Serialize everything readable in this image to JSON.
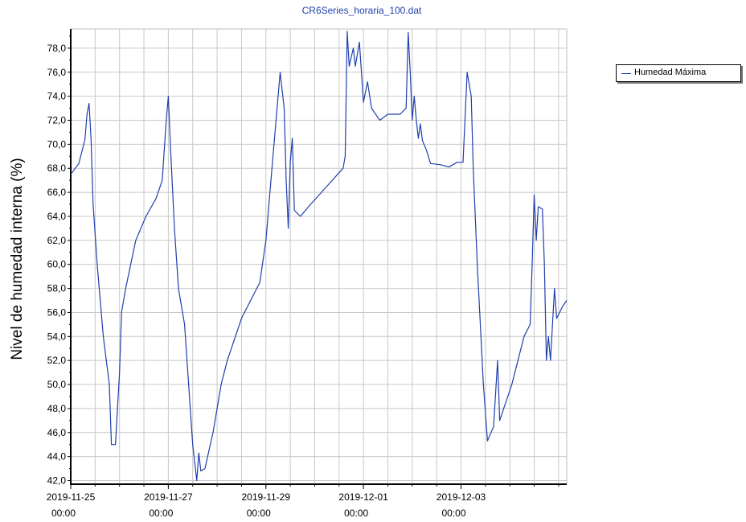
{
  "chart_data": {
    "type": "line",
    "title": "CR6Series_horaria_100.dat",
    "ylabel": "Nivel de humedad interna (%)",
    "xlabel": "",
    "ylim": [
      41.7,
      79.6
    ],
    "xlim": [
      "2019-11-25 00:00",
      "2019-12-05 04:00"
    ],
    "grid": true,
    "legend_position": "right",
    "y_ticks": [
      "42,0",
      "44,0",
      "46,0",
      "48,0",
      "50,0",
      "52,0",
      "54,0",
      "56,0",
      "58,0",
      "60,0",
      "62,0",
      "64,0",
      "66,0",
      "68,0",
      "70,0",
      "72,0",
      "74,0",
      "76,0",
      "78,0"
    ],
    "y_tick_values": [
      42,
      44,
      46,
      48,
      50,
      52,
      54,
      56,
      58,
      60,
      62,
      64,
      66,
      68,
      70,
      72,
      74,
      76,
      78
    ],
    "x_ticks": [
      {
        "date": "2019-11-25",
        "time": "00:00"
      },
      {
        "date": "2019-11-27",
        "time": "00:00"
      },
      {
        "date": "2019-11-29",
        "time": "00:00"
      },
      {
        "date": "2019-12-01",
        "time": "00:00"
      },
      {
        "date": "2019-12-03",
        "time": "00:00"
      }
    ],
    "series_color": "#1f3fae",
    "series": [
      {
        "name": "Humedad Máxima",
        "points": [
          [
            "2019-11-25 00:00",
            67.5
          ],
          [
            "2019-11-25 04:00",
            68.4
          ],
          [
            "2019-11-25 07:00",
            70.4
          ],
          [
            "2019-11-25 08:00",
            72.5
          ],
          [
            "2019-11-25 09:00",
            73.4
          ],
          [
            "2019-11-25 10:00",
            70.4
          ],
          [
            "2019-11-25 11:00",
            65.0
          ],
          [
            "2019-11-25 13:00",
            60.0
          ],
          [
            "2019-11-25 16:00",
            54.0
          ],
          [
            "2019-11-25 19:00",
            50.0
          ],
          [
            "2019-11-25 20:00",
            45.0
          ],
          [
            "2019-11-25 22:00",
            45.0
          ],
          [
            "2019-11-26 00:00",
            51.0
          ],
          [
            "2019-11-26 01:00",
            56.0
          ],
          [
            "2019-11-26 03:00",
            58.0
          ],
          [
            "2019-11-26 08:00",
            62.0
          ],
          [
            "2019-11-26 13:00",
            64.0
          ],
          [
            "2019-11-26 18:00",
            65.5
          ],
          [
            "2019-11-26 21:00",
            67.0
          ],
          [
            "2019-11-26 23:00",
            72.0
          ],
          [
            "2019-11-27 00:00",
            74.0
          ],
          [
            "2019-11-27 01:00",
            70.0
          ],
          [
            "2019-11-27 03:00",
            63.0
          ],
          [
            "2019-11-27 05:00",
            58.0
          ],
          [
            "2019-11-27 08:00",
            55.0
          ],
          [
            "2019-11-27 12:00",
            45.0
          ],
          [
            "2019-11-27 14:00",
            42.0
          ],
          [
            "2019-11-27 15:00",
            44.3
          ],
          [
            "2019-11-27 16:00",
            42.8
          ],
          [
            "2019-11-27 18:00",
            43.0
          ],
          [
            "2019-11-27 22:00",
            46.0
          ],
          [
            "2019-11-28 02:00",
            50.0
          ],
          [
            "2019-11-28 05:00",
            52.0
          ],
          [
            "2019-11-28 08:00",
            53.5
          ],
          [
            "2019-11-28 12:00",
            55.5
          ],
          [
            "2019-11-28 18:00",
            57.5
          ],
          [
            "2019-11-28 21:00",
            58.5
          ],
          [
            "2019-11-29 00:00",
            62.0
          ],
          [
            "2019-11-29 02:00",
            66.0
          ],
          [
            "2019-11-29 03:00",
            68.0
          ],
          [
            "2019-11-29 05:00",
            72.0
          ],
          [
            "2019-11-29 07:00",
            76.0
          ],
          [
            "2019-11-29 09:00",
            73.0
          ],
          [
            "2019-11-29 10:00",
            67.0
          ],
          [
            "2019-11-29 11:00",
            63.0
          ],
          [
            "2019-11-29 12:00",
            68.5
          ],
          [
            "2019-11-29 13:00",
            70.5
          ],
          [
            "2019-11-29 14:00",
            64.5
          ],
          [
            "2019-11-29 17:00",
            64.0
          ],
          [
            "2019-11-29 22:00",
            65.0
          ],
          [
            "2019-11-30 06:00",
            66.5
          ],
          [
            "2019-11-30 14:00",
            68.0
          ],
          [
            "2019-11-30 15:00",
            69.0
          ],
          [
            "2019-11-30 16:00",
            79.4
          ],
          [
            "2019-11-30 17:00",
            76.5
          ],
          [
            "2019-11-30 19:00",
            78.0
          ],
          [
            "2019-11-30 20:00",
            76.5
          ],
          [
            "2019-11-30 22:00",
            78.5
          ],
          [
            "2019-12-01 00:00",
            73.5
          ],
          [
            "2019-12-01 02:00",
            75.2
          ],
          [
            "2019-12-01 04:00",
            73.0
          ],
          [
            "2019-12-01 08:00",
            72.0
          ],
          [
            "2019-12-01 12:00",
            72.5
          ],
          [
            "2019-12-01 15:00",
            72.5
          ],
          [
            "2019-12-01 18:00",
            72.5
          ],
          [
            "2019-12-01 21:00",
            73.0
          ],
          [
            "2019-12-01 22:00",
            79.3
          ],
          [
            "2019-12-01 23:00",
            76.0
          ],
          [
            "2019-12-02 00:00",
            72.0
          ],
          [
            "2019-12-02 01:00",
            74.0
          ],
          [
            "2019-12-02 02:00",
            72.0
          ],
          [
            "2019-12-02 03:00",
            70.5
          ],
          [
            "2019-12-02 04:00",
            71.7
          ],
          [
            "2019-12-02 05:00",
            70.3
          ],
          [
            "2019-12-02 07:00",
            69.5
          ],
          [
            "2019-12-02 09:00",
            68.4
          ],
          [
            "2019-12-02 14:00",
            68.3
          ],
          [
            "2019-12-02 18:00",
            68.1
          ],
          [
            "2019-12-02 22:00",
            68.5
          ],
          [
            "2019-12-03 01:00",
            68.5
          ],
          [
            "2019-12-03 03:00",
            76.0
          ],
          [
            "2019-12-03 05:00",
            74.0
          ],
          [
            "2019-12-03 06:00",
            68.0
          ],
          [
            "2019-12-03 08:00",
            60.0
          ],
          [
            "2019-12-03 11:00",
            50.0
          ],
          [
            "2019-12-03 13:00",
            45.3
          ],
          [
            "2019-12-03 16:00",
            46.5
          ],
          [
            "2019-12-03 18:00",
            52.0
          ],
          [
            "2019-12-03 19:00",
            47.0
          ],
          [
            "2019-12-03 22:00",
            48.5
          ],
          [
            "2019-12-04 01:00",
            50.0
          ],
          [
            "2019-12-04 04:00",
            52.0
          ],
          [
            "2019-12-04 07:00",
            54.0
          ],
          [
            "2019-12-04 10:00",
            55.0
          ],
          [
            "2019-12-04 11:00",
            60.0
          ],
          [
            "2019-12-04 12:00",
            65.8
          ],
          [
            "2019-12-04 13:00",
            62.0
          ],
          [
            "2019-12-04 14:00",
            64.8
          ],
          [
            "2019-12-04 16:00",
            64.6
          ],
          [
            "2019-12-04 17:00",
            60.0
          ],
          [
            "2019-12-04 18:00",
            52.0
          ],
          [
            "2019-12-04 19:00",
            54.0
          ],
          [
            "2019-12-04 20:00",
            52.0
          ],
          [
            "2019-12-04 22:00",
            58.0
          ],
          [
            "2019-12-04 23:00",
            55.5
          ],
          [
            "2019-12-05 02:00",
            56.5
          ],
          [
            "2019-12-05 04:00",
            57.0
          ]
        ]
      }
    ]
  }
}
